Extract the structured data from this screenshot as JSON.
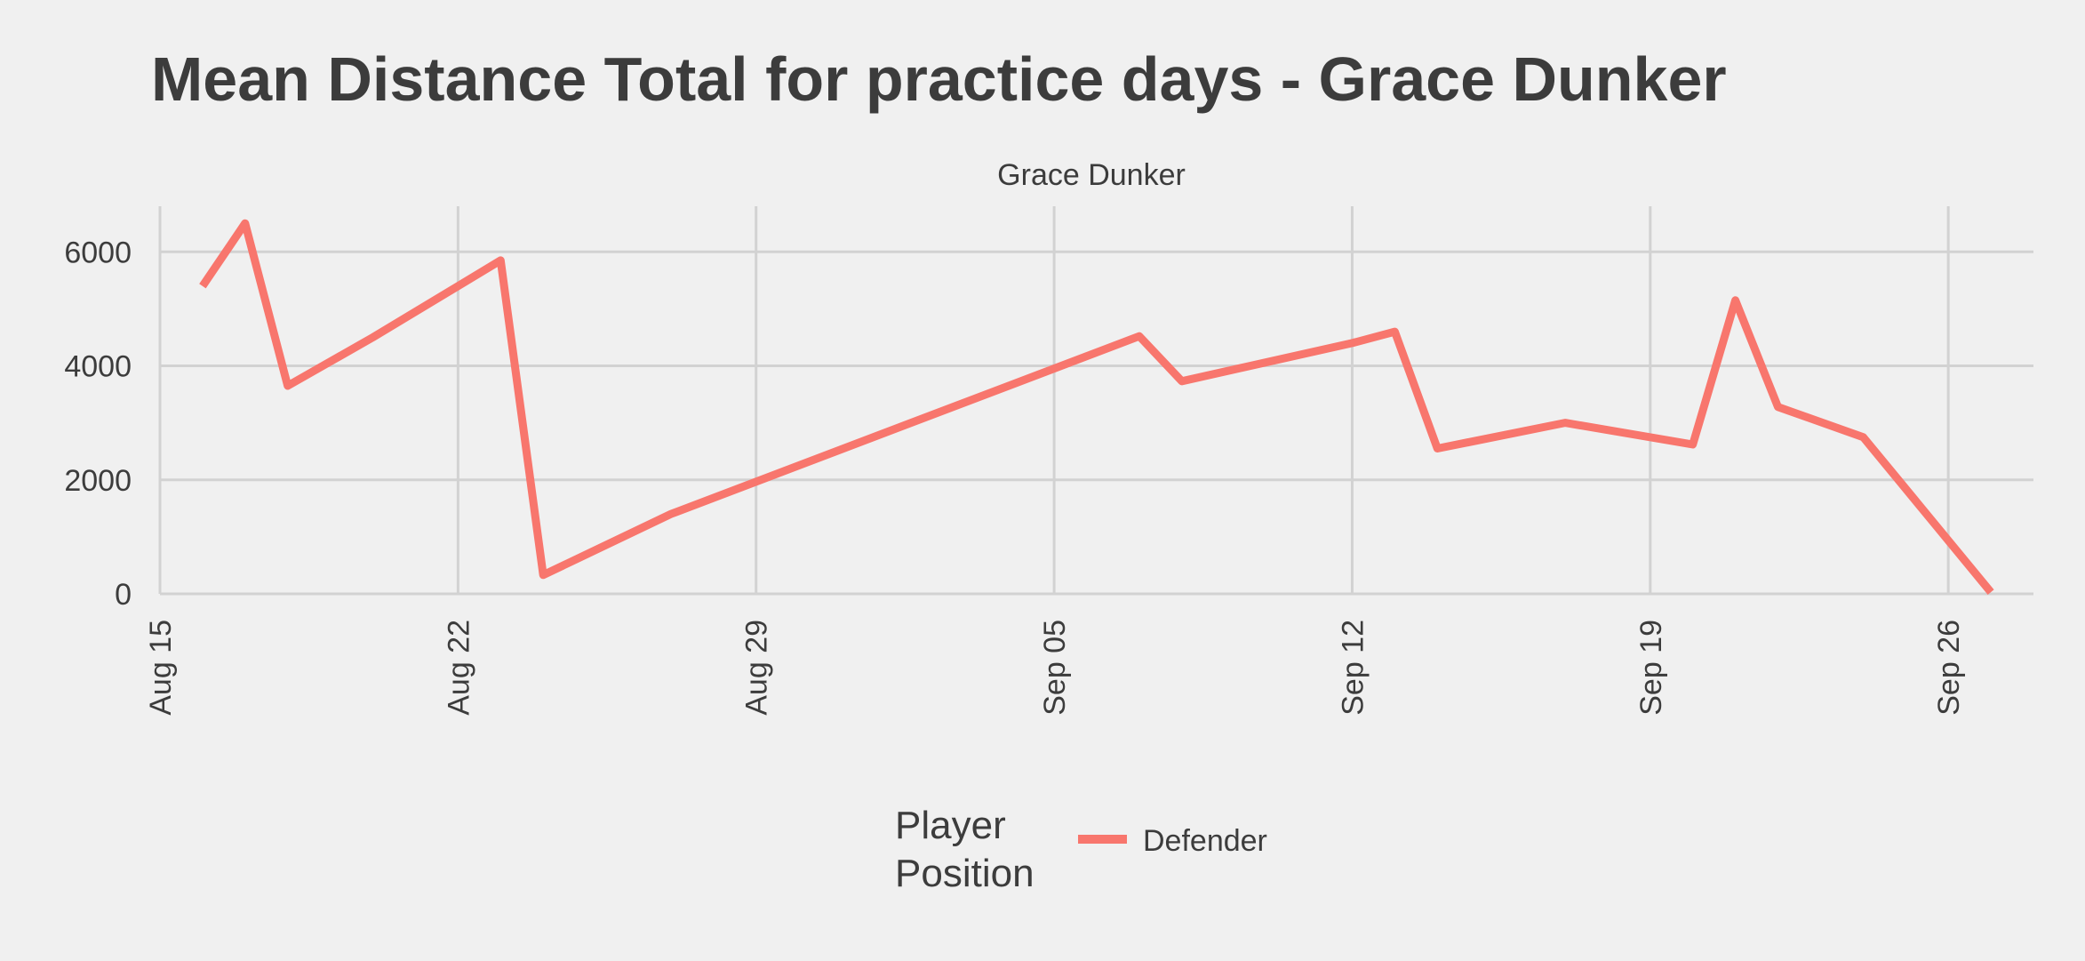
{
  "chart_data": {
    "type": "line",
    "title": "Mean Distance Total for practice days -  Grace Dunker",
    "facet_label": "Grace Dunker",
    "xlabel": "",
    "ylabel": "",
    "x_ticks": [
      "2022-08-15",
      "2022-08-22",
      "2022-08-29",
      "2022-09-05",
      "2022-09-12",
      "2022-09-19",
      "2022-09-26"
    ],
    "x_tick_labels": [
      "Aug 15",
      "Aug 22",
      "Aug 29",
      "Sep 05",
      "Sep 12",
      "Sep 19",
      "Sep 26"
    ],
    "xlim": [
      "2022-08-15",
      "2022-09-28"
    ],
    "y_ticks": [
      0,
      2000,
      4000,
      6000
    ],
    "y_tick_labels": [
      "0",
      "2000",
      "4000",
      "6000"
    ],
    "ylim": [
      0,
      6800
    ],
    "grid": true,
    "legend": {
      "title": "Player\nPosition",
      "placement": "bottom"
    },
    "series": [
      {
        "name": "Defender",
        "color": "#f8766d",
        "points": [
          {
            "x": "2022-08-16",
            "y": 5400
          },
          {
            "x": "2022-08-17",
            "y": 6500
          },
          {
            "x": "2022-08-18",
            "y": 3650
          },
          {
            "x": "2022-08-20",
            "y": 4500
          },
          {
            "x": "2022-08-23",
            "y": 5850
          },
          {
            "x": "2022-08-24",
            "y": 330
          },
          {
            "x": "2022-08-27",
            "y": 1400
          },
          {
            "x": "2022-09-07",
            "y": 4520
          },
          {
            "x": "2022-09-08",
            "y": 3730
          },
          {
            "x": "2022-09-12",
            "y": 4400
          },
          {
            "x": "2022-09-13",
            "y": 4600
          },
          {
            "x": "2022-09-14",
            "y": 2550
          },
          {
            "x": "2022-09-17",
            "y": 3000
          },
          {
            "x": "2022-09-20",
            "y": 2620
          },
          {
            "x": "2022-09-21",
            "y": 5150
          },
          {
            "x": "2022-09-22",
            "y": 3280
          },
          {
            "x": "2022-09-24",
            "y": 2750
          },
          {
            "x": "2022-09-27",
            "y": 30
          }
        ]
      }
    ]
  }
}
